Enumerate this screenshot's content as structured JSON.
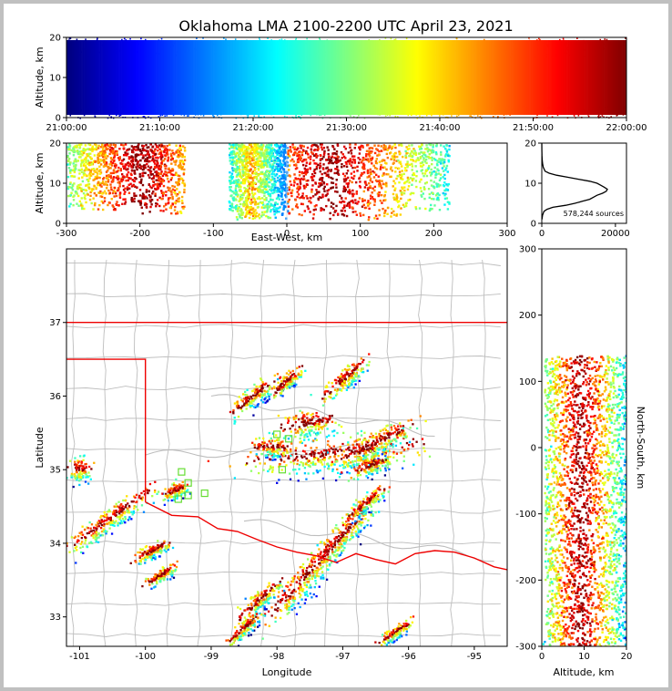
{
  "title": "Oklahoma LMA 2100-2200 UTC April 23, 2021",
  "colors": {
    "jet": [
      "#00007f",
      "#0000ff",
      "#007fff",
      "#00ffff",
      "#7fff7f",
      "#ffff00",
      "#ff7f00",
      "#ff0000",
      "#7f0000"
    ],
    "state_border": "#ee0000",
    "county_lines": "#bdbdbd",
    "stations": "#66dd33",
    "histogram_line": "#000000"
  },
  "chart_data": [
    {
      "id": "time-height",
      "type": "scatter",
      "ylabel": "Altitude, km",
      "xlabel": "",
      "x_ticks": [
        "21:00:00",
        "21:10:00",
        "21:20:00",
        "21:30:00",
        "21:40:00",
        "21:50:00",
        "22:00:00"
      ],
      "y_ticks": [
        "0",
        "10",
        "20"
      ],
      "ylim": [
        0,
        20
      ],
      "color_by": "time"
    },
    {
      "id": "ew-height",
      "type": "scatter",
      "xlabel": "East-West, km",
      "ylabel": "Altitude, km",
      "x_ticks": [
        "-300",
        "-200",
        "-100",
        "0",
        "100",
        "200",
        "300"
      ],
      "y_ticks": [
        "0",
        "10",
        "20"
      ],
      "xlim": [
        -300,
        300
      ],
      "ylim": [
        0,
        20
      ],
      "clusters": [
        {
          "x": [
            -300,
            -140
          ],
          "y": [
            4,
            20
          ],
          "peak_x": -200
        },
        {
          "x": [
            -80,
            0
          ],
          "y": [
            1,
            20
          ],
          "peak_x": -50
        },
        {
          "x": [
            0,
            220
          ],
          "y": [
            1,
            20
          ],
          "peak_x": 60
        }
      ]
    },
    {
      "id": "altitude-histogram",
      "type": "line",
      "annotation": "578,244 sources",
      "x_ticks": [
        "0",
        "20000"
      ],
      "y_ticks": [
        "0",
        "10",
        "20"
      ],
      "xlim": [
        0,
        23000
      ],
      "ylim": [
        0,
        20
      ],
      "x": [
        50,
        200,
        600,
        1400,
        3000,
        6500,
        9000,
        11000,
        13000,
        14000,
        15000,
        16500,
        17500,
        17800,
        17000,
        16000,
        15000,
        13000,
        10000,
        7000,
        4000,
        2000,
        900,
        400,
        200,
        100,
        50,
        20,
        5
      ],
      "y": [
        1,
        2,
        3,
        3.5,
        4,
        4.5,
        5,
        5.5,
        6,
        6.5,
        7,
        7.5,
        8,
        8.5,
        9,
        9.5,
        10,
        10.5,
        11,
        11.5,
        12,
        12.5,
        13,
        14,
        15,
        16,
        17,
        18,
        20
      ]
    },
    {
      "id": "plan-view",
      "type": "scatter",
      "xlabel": "Longitude",
      "ylabel": "Latitude",
      "x_ticks": [
        "-101",
        "-100",
        "-99",
        "-98",
        "-97",
        "-96",
        "-95"
      ],
      "y_ticks": [
        "33",
        "34",
        "35",
        "36",
        "37"
      ],
      "xlim": [
        -101.2,
        -94.5
      ],
      "ylim": [
        32.6,
        38.0
      ],
      "stations": [
        [
          -99.45,
          34.97
        ],
        [
          -99.35,
          34.82
        ],
        [
          -99.5,
          34.6
        ],
        [
          -99.35,
          34.65
        ],
        [
          -99.1,
          34.68
        ],
        [
          -98.0,
          35.48
        ],
        [
          -97.82,
          35.42
        ],
        [
          -97.92,
          35.0
        ]
      ],
      "storms": [
        {
          "lon": -100.55,
          "lat": 34.32,
          "len": 1.5,
          "wid": 0.22,
          "ang": 33
        },
        {
          "lon": -99.9,
          "lat": 33.9,
          "len": 0.55,
          "wid": 0.14,
          "ang": 25
        },
        {
          "lon": -99.75,
          "lat": 33.58,
          "len": 0.45,
          "wid": 0.13,
          "ang": 30
        },
        {
          "lon": -101.0,
          "lat": 35.0,
          "len": 0.3,
          "wid": 0.25,
          "ang": 0
        },
        {
          "lon": -99.55,
          "lat": 34.72,
          "len": 0.35,
          "wid": 0.15,
          "ang": 20
        },
        {
          "lon": -98.35,
          "lat": 36.0,
          "len": 0.8,
          "wid": 0.18,
          "ang": 35
        },
        {
          "lon": -97.85,
          "lat": 36.2,
          "len": 0.5,
          "wid": 0.15,
          "ang": 40
        },
        {
          "lon": -97.5,
          "lat": 35.62,
          "len": 0.8,
          "wid": 0.3,
          "ang": 10
        },
        {
          "lon": -97.15,
          "lat": 35.2,
          "len": 2.3,
          "wid": 0.35,
          "ang": 5
        },
        {
          "lon": -96.5,
          "lat": 35.35,
          "len": 1.2,
          "wid": 0.25,
          "ang": 25
        },
        {
          "lon": -96.95,
          "lat": 36.25,
          "len": 0.8,
          "wid": 0.2,
          "ang": 38
        },
        {
          "lon": -96.6,
          "lat": 35.05,
          "len": 0.6,
          "wid": 0.2,
          "ang": 20
        },
        {
          "lon": -97.6,
          "lat": 33.5,
          "len": 1.5,
          "wid": 0.28,
          "ang": 45
        },
        {
          "lon": -98.3,
          "lat": 33.2,
          "len": 0.8,
          "wid": 0.18,
          "ang": 40
        },
        {
          "lon": -98.5,
          "lat": 32.85,
          "len": 0.6,
          "wid": 0.12,
          "ang": 40
        },
        {
          "lon": -97.0,
          "lat": 34.1,
          "len": 1.2,
          "wid": 0.25,
          "ang": 45
        },
        {
          "lon": -96.65,
          "lat": 34.55,
          "len": 0.6,
          "wid": 0.15,
          "ang": 35
        },
        {
          "lon": -96.2,
          "lat": 32.8,
          "len": 0.5,
          "wid": 0.12,
          "ang": 30
        },
        {
          "lon": -98.1,
          "lat": 35.3,
          "len": 0.5,
          "wid": 0.2,
          "ang": 0
        }
      ]
    },
    {
      "id": "height-ns",
      "type": "scatter",
      "xlabel": "Altitude, km",
      "ylabel": "North-South, km",
      "x_ticks": [
        "0",
        "10",
        "20"
      ],
      "y_ticks": [
        "-300",
        "-200",
        "-100",
        "0",
        "100",
        "200",
        "300"
      ],
      "xlim": [
        0,
        20
      ],
      "ylim": [
        -300,
        300
      ]
    }
  ]
}
